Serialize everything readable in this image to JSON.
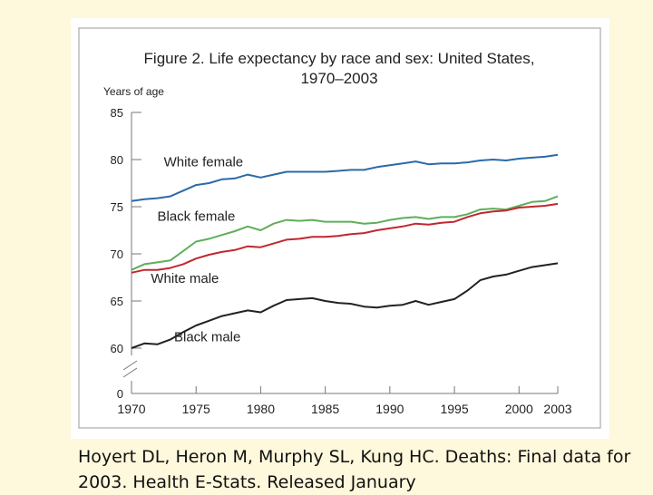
{
  "citation": "Hoyert DL, Heron M, Murphy SL, Kung HC. Deaths: Final data for 2003. Health E-Stats. Released January",
  "chart_data": {
    "type": "line",
    "title": "Figure 2. Life expectancy by race and sex:  United States,",
    "subtitle": "1970–2003",
    "ylabel": "Years of age",
    "xlabel": "",
    "xlim": [
      1970,
      2003
    ],
    "ylim": [
      60,
      85
    ],
    "y_break": true,
    "yticks": [
      85,
      80,
      75,
      70,
      65,
      60
    ],
    "ytick_zero": 0,
    "xticks": [
      1970,
      1975,
      1980,
      1985,
      1990,
      1995,
      2000,
      2003
    ],
    "x": [
      1970,
      1971,
      1972,
      1973,
      1974,
      1975,
      1976,
      1977,
      1978,
      1979,
      1980,
      1981,
      1982,
      1983,
      1984,
      1985,
      1986,
      1987,
      1988,
      1989,
      1990,
      1991,
      1992,
      1993,
      1994,
      1995,
      1996,
      1997,
      1998,
      1999,
      2000,
      2001,
      2002,
      2003
    ],
    "series": [
      {
        "name": "White female",
        "color": "#2b6aa8",
        "values": [
          75.6,
          75.8,
          75.9,
          76.1,
          76.7,
          77.3,
          77.5,
          77.9,
          78.0,
          78.4,
          78.1,
          78.4,
          78.7,
          78.7,
          78.7,
          78.7,
          78.8,
          78.9,
          78.9,
          79.2,
          79.4,
          79.6,
          79.8,
          79.5,
          79.6,
          79.6,
          79.7,
          79.9,
          80.0,
          79.9,
          80.1,
          80.2,
          80.3,
          80.5
        ]
      },
      {
        "name": "Black female",
        "color": "#5fae5a",
        "values": [
          68.3,
          68.9,
          69.1,
          69.3,
          70.3,
          71.3,
          71.6,
          72.0,
          72.4,
          72.9,
          72.5,
          73.2,
          73.6,
          73.5,
          73.6,
          73.4,
          73.4,
          73.4,
          73.2,
          73.3,
          73.6,
          73.8,
          73.9,
          73.7,
          73.9,
          73.9,
          74.2,
          74.7,
          74.8,
          74.7,
          75.1,
          75.5,
          75.6,
          76.1
        ]
      },
      {
        "name": "White male",
        "color": "#c0282f",
        "values": [
          68.0,
          68.3,
          68.3,
          68.5,
          68.9,
          69.5,
          69.9,
          70.2,
          70.4,
          70.8,
          70.7,
          71.1,
          71.5,
          71.6,
          71.8,
          71.8,
          71.9,
          72.1,
          72.2,
          72.5,
          72.7,
          72.9,
          73.2,
          73.1,
          73.3,
          73.4,
          73.9,
          74.3,
          74.5,
          74.6,
          74.9,
          75.0,
          75.1,
          75.3
        ]
      },
      {
        "name": "Black male",
        "color": "#222222",
        "values": [
          60.0,
          60.5,
          60.4,
          60.9,
          61.7,
          62.4,
          62.9,
          63.4,
          63.7,
          64.0,
          63.8,
          64.5,
          65.1,
          65.2,
          65.3,
          65.0,
          64.8,
          64.7,
          64.4,
          64.3,
          64.5,
          64.6,
          65.0,
          64.6,
          64.9,
          65.2,
          66.1,
          67.2,
          67.6,
          67.8,
          68.2,
          68.6,
          68.8,
          69.0
        ]
      }
    ],
    "annotations": [
      {
        "text": "White female",
        "series": "White female"
      },
      {
        "text": "Black female",
        "series": "Black female"
      },
      {
        "text": "White male",
        "series": "White male"
      },
      {
        "text": "Black male",
        "series": "Black male"
      }
    ]
  }
}
